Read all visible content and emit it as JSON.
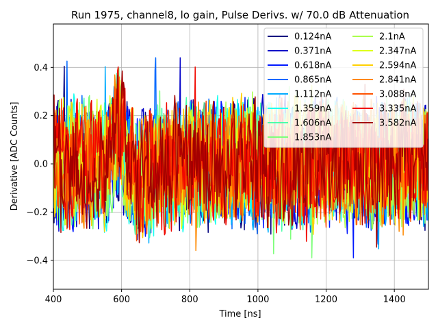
{
  "chart_data": {
    "type": "line",
    "title": "Run 1975, channel8, lo gain, Pulse Derivs. w/ 70.0 dB Attenuation",
    "xlabel": "Time [ns]",
    "ylabel": "Derivative [ADC Counts]",
    "xlim": [
      400,
      1500
    ],
    "ylim": [
      -0.52,
      0.58
    ],
    "xticks": [
      400,
      600,
      800,
      1000,
      1200,
      1400
    ],
    "xtick_labels": [
      "400",
      "600",
      "800",
      "1000",
      "1200",
      "1400"
    ],
    "yticks": [
      -0.4,
      -0.2,
      0.0,
      0.2,
      0.4
    ],
    "ytick_labels": [
      "−0.4",
      "−0.2",
      "0.0",
      "0.2",
      "0.4"
    ],
    "grid": true,
    "legend_position": "top-right",
    "legend_columns": 2,
    "x_step": 2,
    "noise_amplitude": 0.1,
    "pulse_center": 590,
    "series": [
      {
        "name": "0.124nA",
        "color": "#00007f"
      },
      {
        "name": "0.371nA",
        "color": "#0000c8"
      },
      {
        "name": "0.618nA",
        "color": "#0018ff"
      },
      {
        "name": "0.865nA",
        "color": "#0068ff"
      },
      {
        "name": "1.112nA",
        "color": "#00acff"
      },
      {
        "name": "1.359nA",
        "color": "#1cfff0"
      },
      {
        "name": "1.606nA",
        "color": "#4dffaa"
      },
      {
        "name": "1.853nA",
        "color": "#7dff7a"
      },
      {
        "name": "2.1nA",
        "color": "#aaff4d"
      },
      {
        "name": "2.347nA",
        "color": "#deff1a"
      },
      {
        "name": "2.594nA",
        "color": "#ffd000"
      },
      {
        "name": "2.841nA",
        "color": "#ff8900"
      },
      {
        "name": "3.088nA",
        "color": "#ff5200"
      },
      {
        "name": "3.335nA",
        "color": "#f10800"
      },
      {
        "name": "3.582nA",
        "color": "#a40000"
      }
    ]
  }
}
